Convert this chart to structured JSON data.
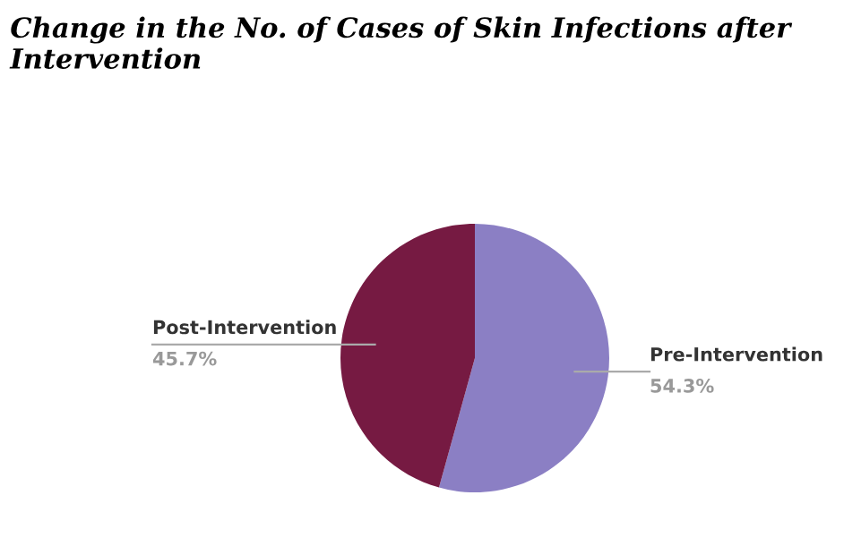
{
  "chart_data": {
    "type": "pie",
    "title": "Change in the No. of Cases of Skin Infections after Intervention",
    "categories": [
      "Pre-Intervention",
      "Post-Intervention"
    ],
    "values": [
      54.3,
      45.7
    ],
    "colors": [
      "#8b7fc4",
      "#761a42"
    ],
    "value_labels": [
      "54.3%",
      "45.7%"
    ]
  }
}
